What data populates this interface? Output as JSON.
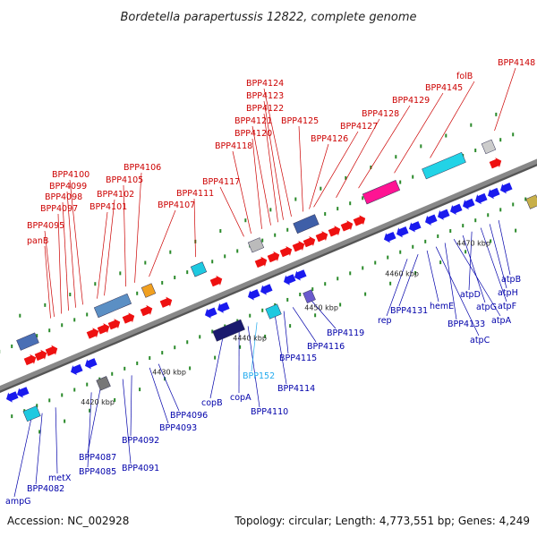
{
  "title": "Bordetella parapertussis 12822, complete genome",
  "footer": {
    "accession": "Accession: NC_002928",
    "summary": "Topology: circular; Length: 4,773,551 bp; Genes: 4,249"
  },
  "colors": {
    "upper_label": "#cc0000",
    "lower_label": "#0000aa",
    "highlight_label": "#22aaee",
    "backbone": "#888888",
    "tick": "#2a8a2a",
    "forward_arrow": "#ee1111",
    "reverse_arrow": "#1a1aee"
  },
  "kbp_markers": [
    "4420 kbp",
    "4430 kbp",
    "4440 kbp",
    "4450 kbp",
    "4460 kbp",
    "4470 kbp"
  ],
  "upper_labels": [
    "BPP4148",
    "folB",
    "BPP4145",
    "BPP4129",
    "BPP4128",
    "BPP4127",
    "BPP4126",
    "BPP4125",
    "BPP4124",
    "BPP4123",
    "BPP4122",
    "BPP4121",
    "BPP4120",
    "BPP4118",
    "BPP4117",
    "BPP4111",
    "BPP4107",
    "BPP4106",
    "BPP4105",
    "BPP4102",
    "BPP4101",
    "BPP4100",
    "BPP4099",
    "BPP4098",
    "BPP4097",
    "BPP4095",
    "panB"
  ],
  "lower_labels": [
    "atpB",
    "atpH",
    "atpF",
    "atpD",
    "atpG",
    "atpA",
    "BPP4133",
    "atpC",
    "hemE",
    "BPP4131",
    "rep",
    "BPP4119",
    "BPP4116",
    "BPP4115",
    "BPP4114",
    "BPP4110",
    "BPP152",
    "copA",
    "copB",
    "BPP4096",
    "BPP4093",
    "BPP4092",
    "BPP4091",
    "BPP4087",
    "BPP4085",
    "metX",
    "BPP4082",
    "ampG"
  ]
}
